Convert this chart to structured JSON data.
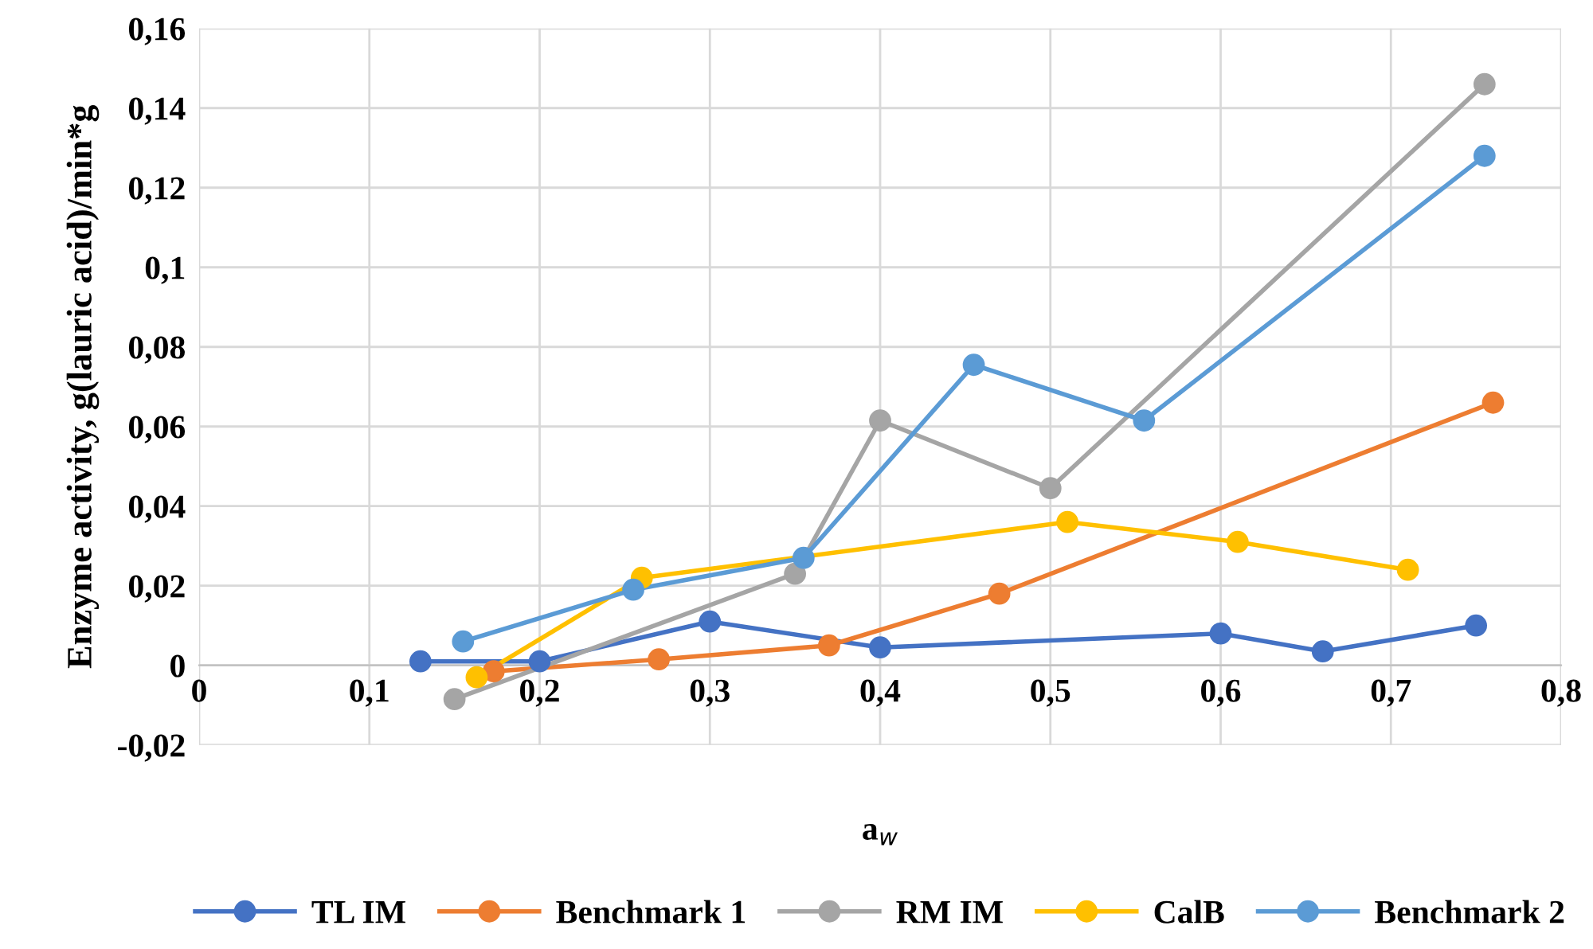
{
  "chart_data": {
    "type": "line",
    "xlabel": "a$_{w}$",
    "ylabel": "Enzyme activity, g(lauric acid)/min*g",
    "xlim": [
      0,
      0.8
    ],
    "xticks": [
      0,
      {
        "value": 0.1,
        "label": "0,1"
      },
      {
        "value": 0.2,
        "label": "0,2"
      },
      {
        "value": 0.3,
        "label": "0,3"
      },
      {
        "value": 0.4,
        "label": "0,4"
      },
      {
        "value": 0.5,
        "label": "0,5"
      },
      {
        "value": 0.6,
        "label": "0,6"
      },
      {
        "value": 0.7,
        "label": "0,7"
      },
      {
        "value": 0.8,
        "label": "0,8"
      }
    ],
    "ylim": [
      -0.02,
      0.16
    ],
    "yticks": [
      {
        "value": -0.02,
        "label": "-0,02"
      },
      0,
      {
        "value": 0.02,
        "label": "0,02"
      },
      {
        "value": 0.04,
        "label": "0,04"
      },
      {
        "value": 0.06,
        "label": "0,06"
      },
      {
        "value": 0.08,
        "label": "0,08"
      },
      {
        "value": 0.1,
        "label": "0,1"
      },
      {
        "value": 0.12,
        "label": "0,12"
      },
      {
        "value": 0.14,
        "label": "0,14"
      },
      {
        "value": 0.16,
        "label": "0,16"
      }
    ],
    "grid": true,
    "legend": "bottom",
    "marker": "circle",
    "line_style": "solid",
    "series": [
      {
        "name": "TL IM",
        "color": "#4472c4",
        "x": [
          0.13,
          0.2,
          0.3,
          0.4,
          0.6,
          0.66,
          0.75
        ],
        "values": [
          0.001,
          0.001,
          0.011,
          0.0045,
          0.008,
          0.0035,
          0.01
        ]
      },
      {
        "name": "Benchmark 1",
        "color": "#ed7d31",
        "x": [
          0.173,
          0.27,
          0.37,
          0.47,
          0.76
        ],
        "values": [
          -0.0015,
          0.0015,
          0.005,
          0.018,
          0.066
        ]
      },
      {
        "name": "RM IM",
        "color": "#a5a5a5",
        "x": [
          0.15,
          0.35,
          0.4,
          0.5,
          0.755
        ],
        "values": [
          -0.0085,
          0.023,
          0.0615,
          0.0445,
          0.146
        ]
      },
      {
        "name": "CalB",
        "color": "#ffc000",
        "x": [
          0.163,
          0.26,
          0.51,
          0.61,
          0.71
        ],
        "values": [
          -0.003,
          0.022,
          0.036,
          0.031,
          0.024
        ]
      },
      {
        "name": "Benchmark 2",
        "color": "#5b9bd5",
        "x": [
          0.155,
          0.255,
          0.355,
          0.455,
          0.555,
          0.755
        ],
        "values": [
          0.006,
          0.019,
          0.027,
          0.0755,
          0.0615,
          0.128
        ]
      }
    ]
  }
}
